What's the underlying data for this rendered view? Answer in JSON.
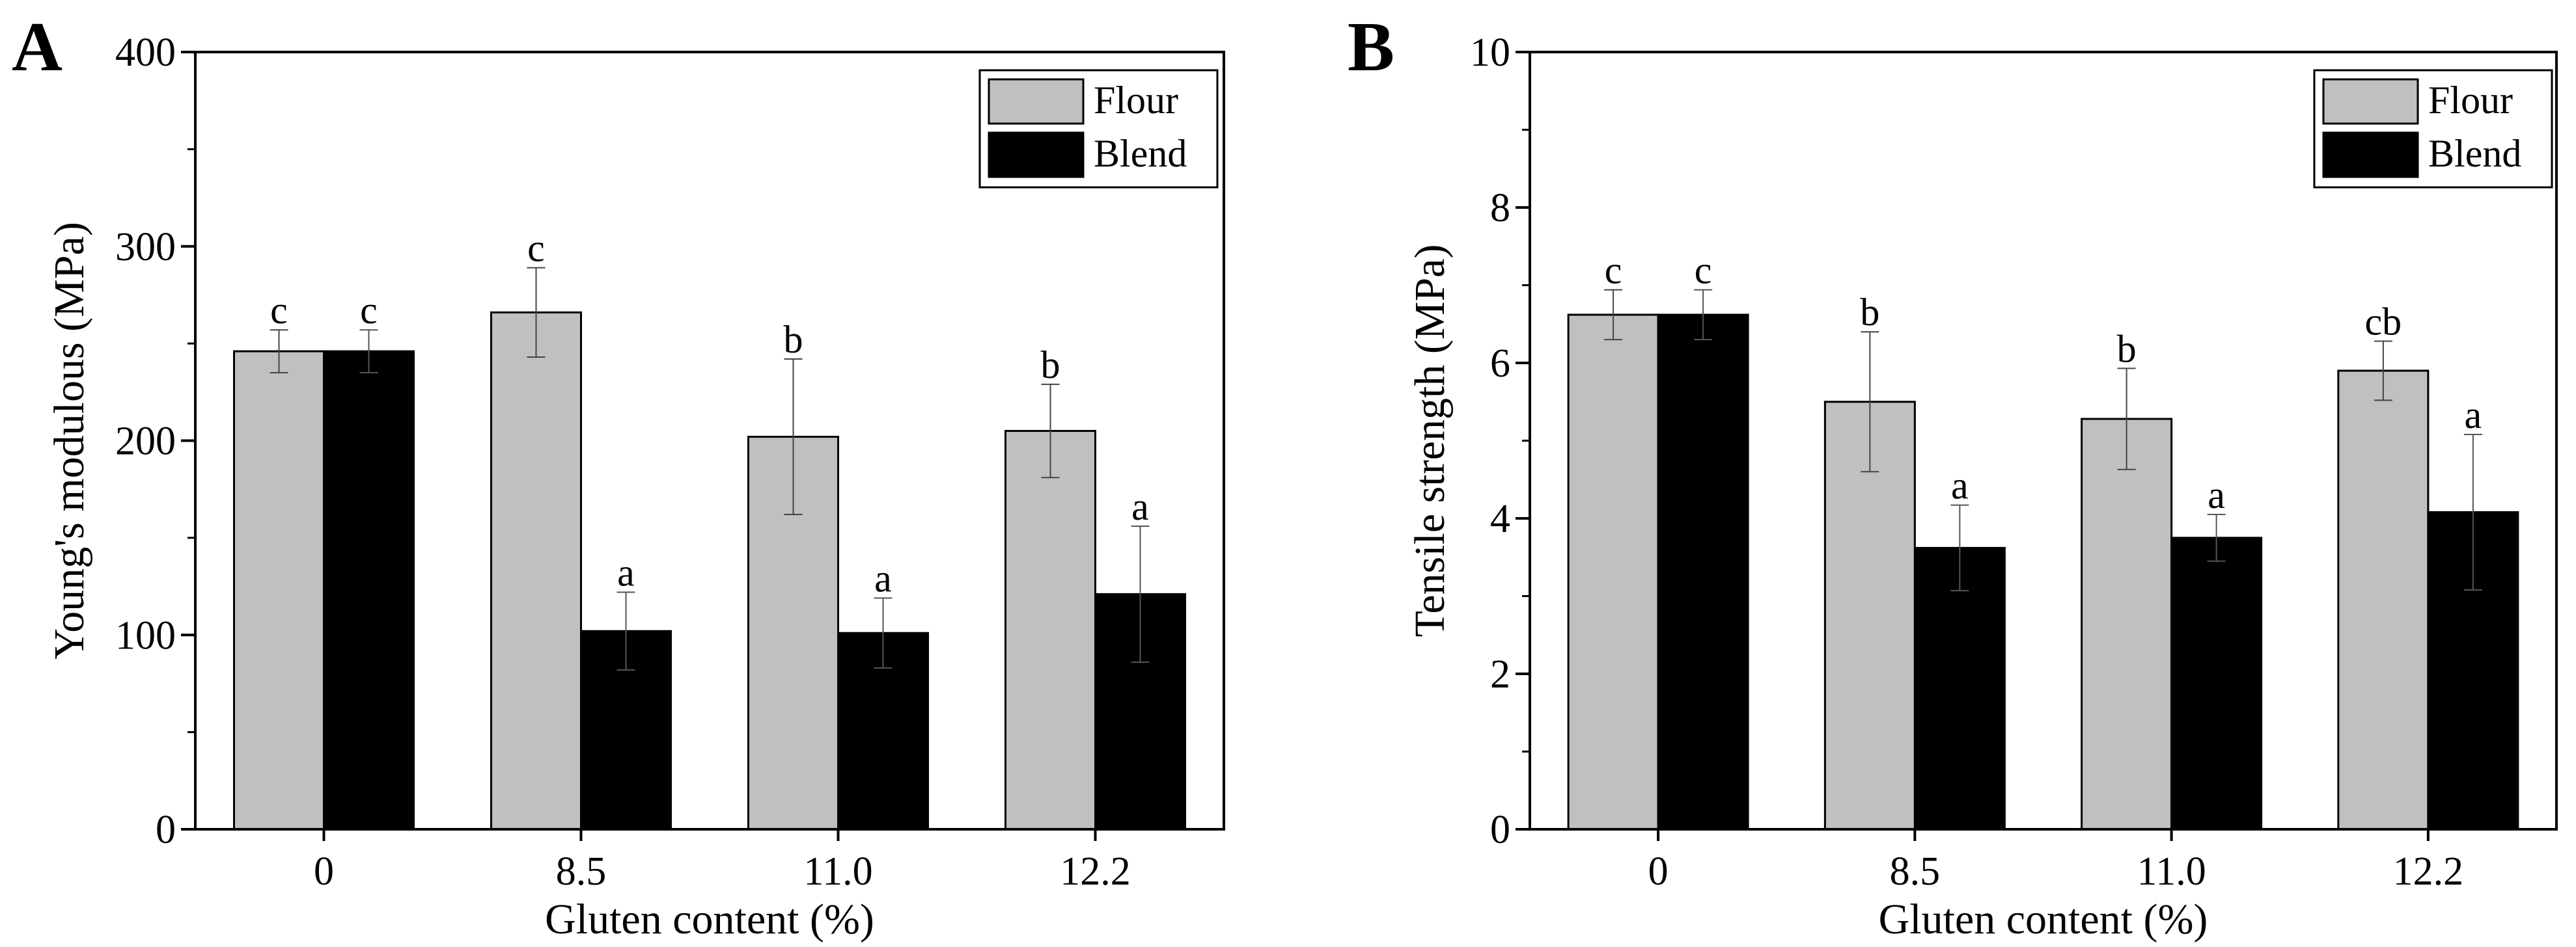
{
  "chart_data": [
    {
      "panel": "A",
      "type": "bar",
      "title": "",
      "xlabel": "Gluten content (%)",
      "ylabel": "Young's modulous (MPa)",
      "categories": [
        "0",
        "8.5",
        "11.0",
        "12.2"
      ],
      "ylim": [
        0,
        400
      ],
      "yticks": [
        0,
        100,
        200,
        300,
        400
      ],
      "grid": false,
      "legend_position": "top-right",
      "series": [
        {
          "name": "Flour",
          "color": "#c0c0c0",
          "values": [
            246,
            266,
            202,
            205
          ],
          "errors": [
            11,
            23,
            40,
            24
          ],
          "labels": [
            "c",
            "c",
            "b",
            "b"
          ]
        },
        {
          "name": "Blend",
          "color": "#000000",
          "values": [
            246,
            102,
            101,
            121
          ],
          "errors": [
            11,
            20,
            18,
            35
          ],
          "labels": [
            "c",
            "a",
            "a",
            "a"
          ]
        }
      ]
    },
    {
      "panel": "B",
      "type": "bar",
      "title": "",
      "xlabel": "Gluten content (%)",
      "ylabel": "Tensile strength (MPa)",
      "categories": [
        "0",
        "8.5",
        "11.0",
        "12.2"
      ],
      "ylim": [
        0,
        10
      ],
      "yticks": [
        0,
        2,
        4,
        6,
        8,
        10
      ],
      "grid": false,
      "legend_position": "top-right",
      "series": [
        {
          "name": "Flour",
          "color": "#c0c0c0",
          "values": [
            6.62,
            5.5,
            5.28,
            5.9
          ],
          "errors": [
            0.32,
            0.9,
            0.65,
            0.38
          ],
          "labels": [
            "c",
            "b",
            "b",
            "cb"
          ]
        },
        {
          "name": "Blend",
          "color": "#000000",
          "values": [
            6.62,
            3.62,
            3.75,
            4.08
          ],
          "errors": [
            0.32,
            0.55,
            0.3,
            1.0
          ],
          "labels": [
            "c",
            "a",
            "a",
            "a"
          ]
        }
      ]
    }
  ]
}
